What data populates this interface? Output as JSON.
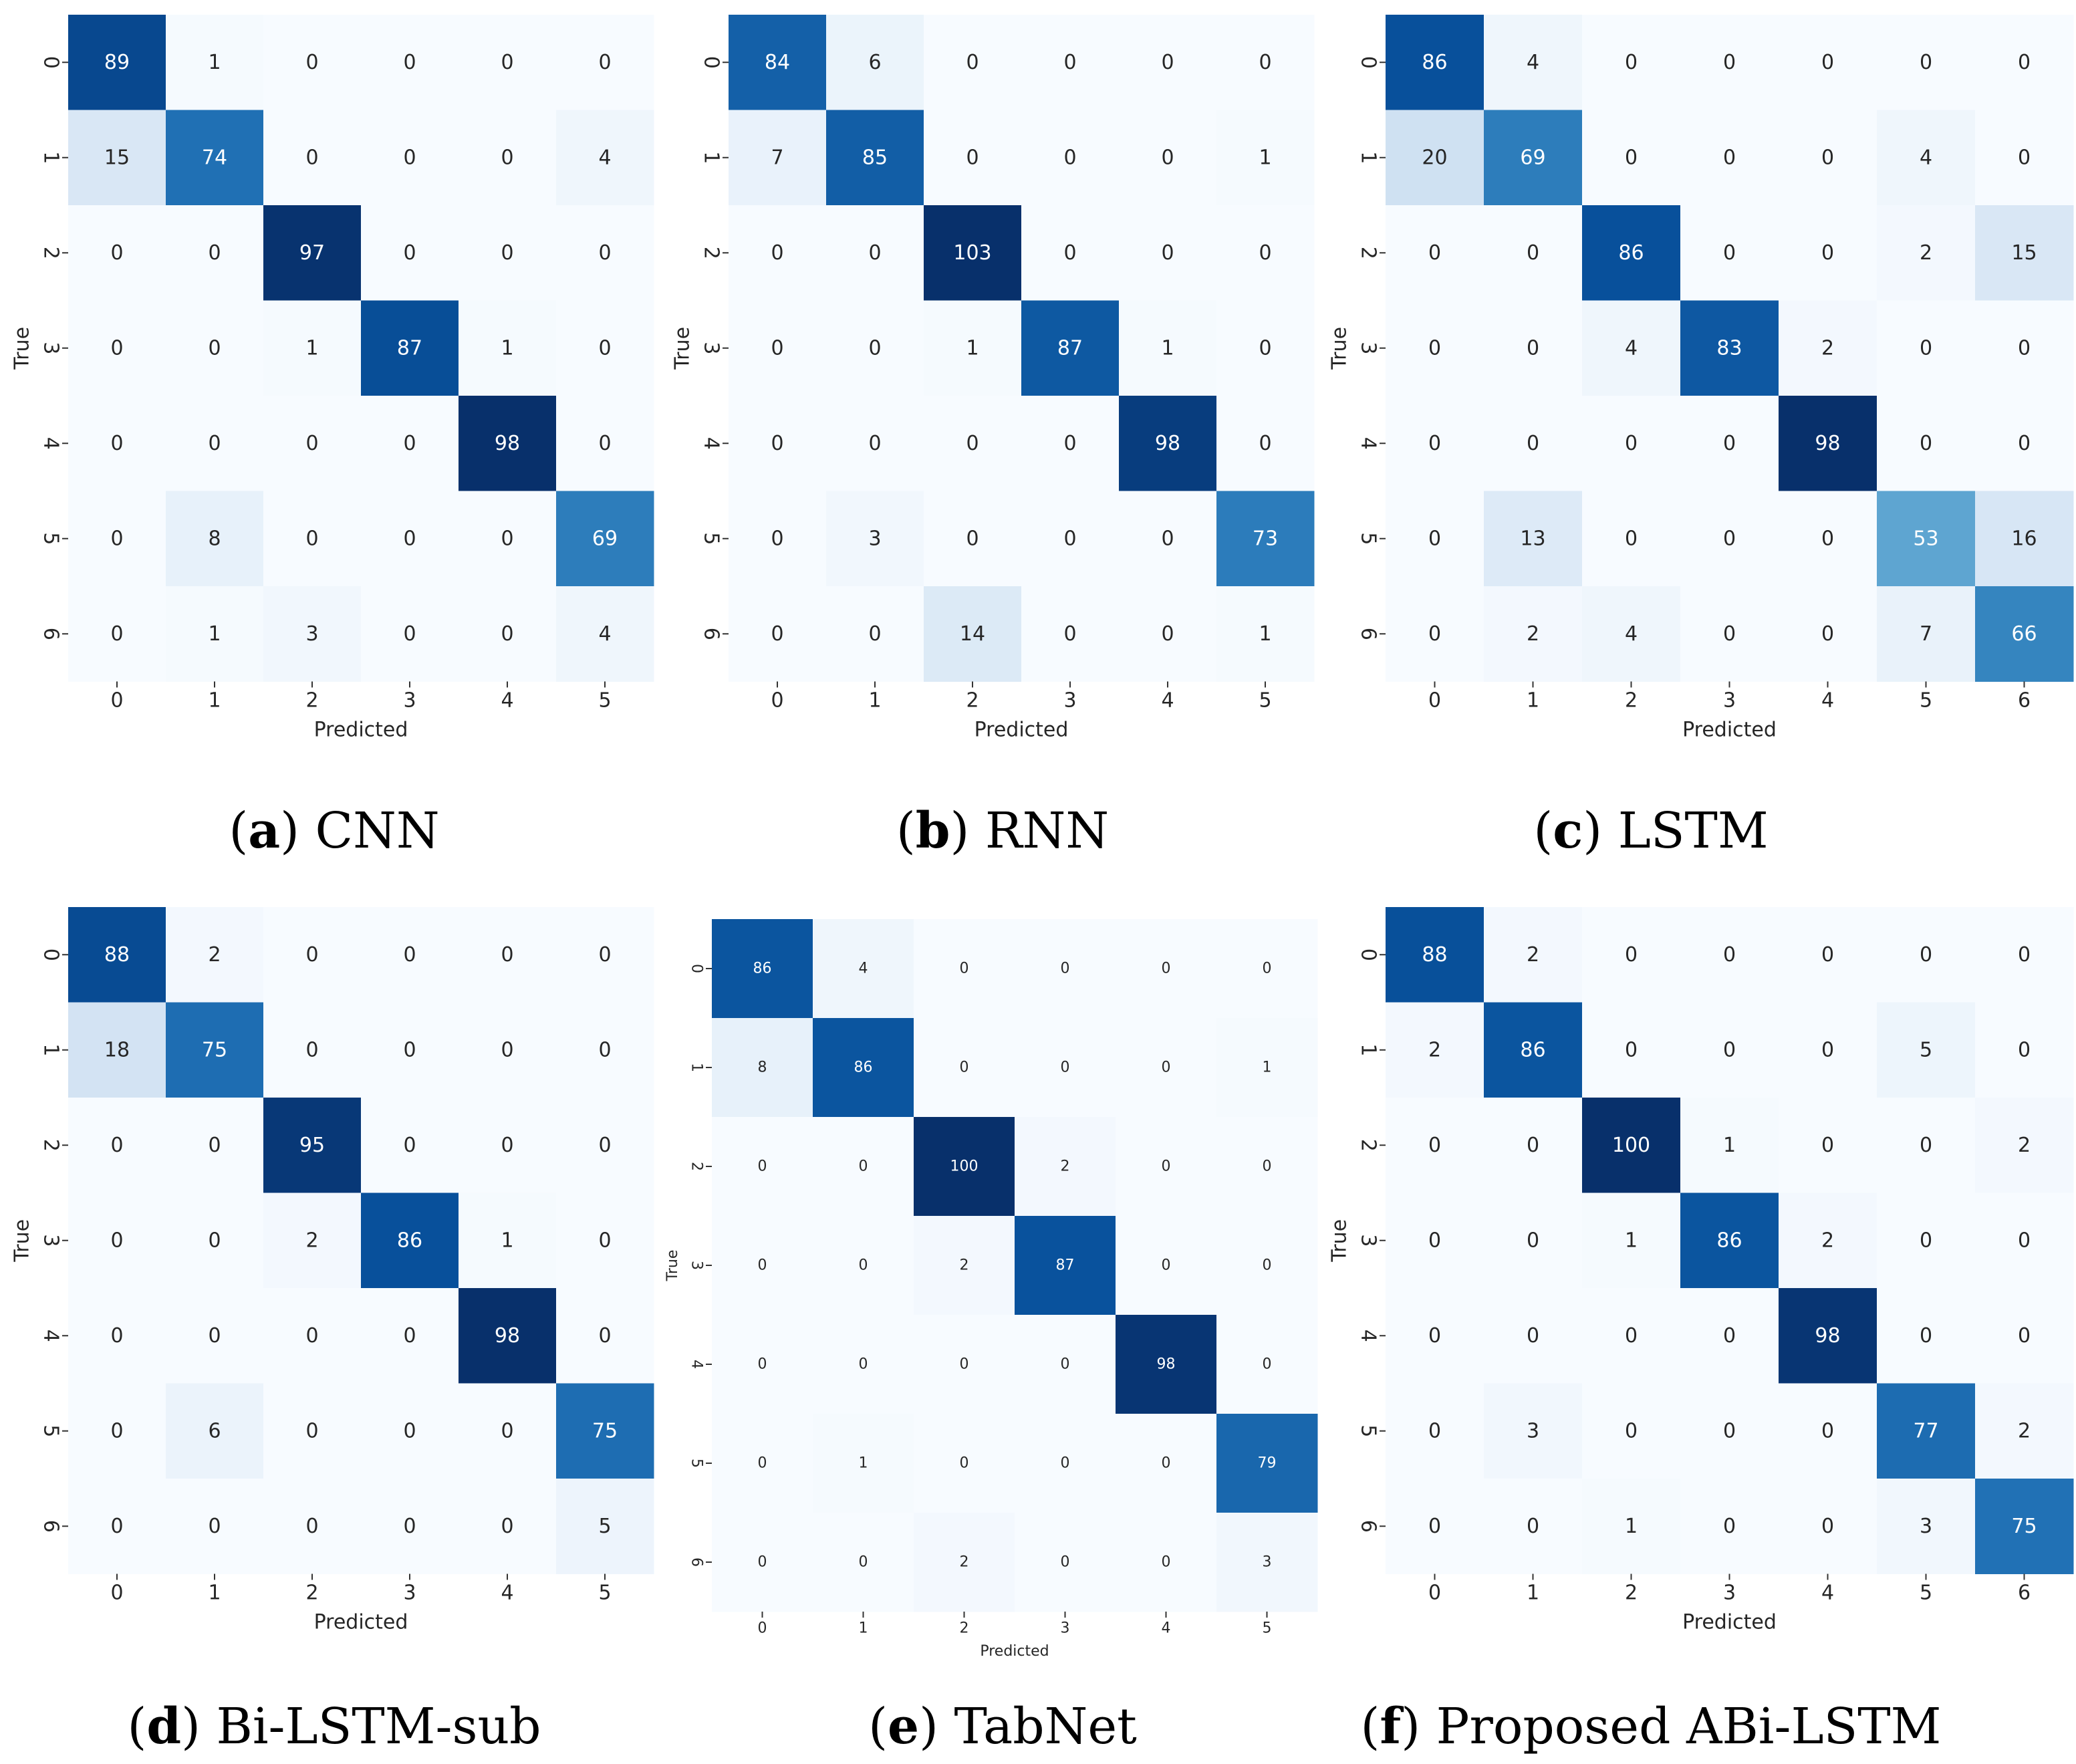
{
  "colors": {
    "low": "#f7fbff",
    "high": "#08306b",
    "text_dark": "#262626",
    "text_light": "#ffffff"
  },
  "chart_data": [
    {
      "type": "heatmap",
      "title": "",
      "xlabel": "Predicted",
      "ylabel": "True",
      "x_ticks": [
        "0",
        "1",
        "2",
        "3",
        "4",
        "5"
      ],
      "y_ticks": [
        "0",
        "1",
        "2",
        "3",
        "4",
        "5",
        "6"
      ],
      "values": [
        [
          89,
          1,
          0,
          0,
          0,
          0
        ],
        [
          15,
          74,
          0,
          0,
          0,
          4
        ],
        [
          0,
          0,
          97,
          0,
          0,
          0
        ],
        [
          0,
          0,
          1,
          87,
          1,
          0
        ],
        [
          0,
          0,
          0,
          0,
          98,
          0
        ],
        [
          0,
          8,
          0,
          0,
          0,
          69
        ],
        [
          0,
          1,
          3,
          0,
          0,
          4
        ]
      ],
      "caption_letter": "a",
      "caption_text": "CNN",
      "colormap": "Blues"
    },
    {
      "type": "heatmap",
      "title": "",
      "xlabel": "Predicted",
      "ylabel": "True",
      "x_ticks": [
        "0",
        "1",
        "2",
        "3",
        "4",
        "5"
      ],
      "y_ticks": [
        "0",
        "1",
        "2",
        "3",
        "4",
        "5",
        "6"
      ],
      "values": [
        [
          84,
          6,
          0,
          0,
          0,
          0
        ],
        [
          7,
          85,
          0,
          0,
          0,
          1
        ],
        [
          0,
          0,
          103,
          0,
          0,
          0
        ],
        [
          0,
          0,
          1,
          87,
          1,
          0
        ],
        [
          0,
          0,
          0,
          0,
          98,
          0
        ],
        [
          0,
          3,
          0,
          0,
          0,
          73
        ],
        [
          0,
          0,
          14,
          0,
          0,
          1
        ]
      ],
      "caption_letter": "b",
      "caption_text": "RNN",
      "colormap": "Blues"
    },
    {
      "type": "heatmap",
      "title": "",
      "xlabel": "Predicted",
      "ylabel": "True",
      "x_ticks": [
        "0",
        "1",
        "2",
        "3",
        "4",
        "5",
        "6"
      ],
      "y_ticks": [
        "0",
        "1",
        "2",
        "3",
        "4",
        "5",
        "6"
      ],
      "values": [
        [
          86,
          4,
          0,
          0,
          0,
          0,
          0
        ],
        [
          20,
          69,
          0,
          0,
          0,
          4,
          0
        ],
        [
          0,
          0,
          86,
          0,
          0,
          2,
          15
        ],
        [
          0,
          0,
          4,
          83,
          2,
          0,
          0
        ],
        [
          0,
          0,
          0,
          0,
          98,
          0,
          0
        ],
        [
          0,
          13,
          0,
          0,
          0,
          53,
          16
        ],
        [
          0,
          2,
          4,
          0,
          0,
          7,
          66
        ]
      ],
      "caption_letter": "c",
      "caption_text": "LSTM",
      "colormap": "Blues"
    },
    {
      "type": "heatmap",
      "title": "",
      "xlabel": "Predicted",
      "ylabel": "True",
      "x_ticks": [
        "0",
        "1",
        "2",
        "3",
        "4",
        "5"
      ],
      "y_ticks": [
        "0",
        "1",
        "2",
        "3",
        "4",
        "5",
        "6"
      ],
      "values": [
        [
          88,
          2,
          0,
          0,
          0,
          0
        ],
        [
          18,
          75,
          0,
          0,
          0,
          0
        ],
        [
          0,
          0,
          95,
          0,
          0,
          0
        ],
        [
          0,
          0,
          2,
          86,
          1,
          0
        ],
        [
          0,
          0,
          0,
          0,
          98,
          0
        ],
        [
          0,
          6,
          0,
          0,
          0,
          75
        ],
        [
          0,
          0,
          0,
          0,
          0,
          5
        ]
      ],
      "caption_letter": "d",
      "caption_text": "Bi-LSTM-sub",
      "colormap": "Blues"
    },
    {
      "type": "heatmap",
      "title": "",
      "xlabel": "Predicted",
      "ylabel": "True",
      "x_ticks": [
        "0",
        "1",
        "2",
        "3",
        "4",
        "5"
      ],
      "y_ticks": [
        "0",
        "1",
        "2",
        "3",
        "4",
        "5",
        "6"
      ],
      "values": [
        [
          86,
          4,
          0,
          0,
          0,
          0
        ],
        [
          8,
          86,
          0,
          0,
          0,
          1
        ],
        [
          0,
          0,
          100,
          2,
          0,
          0
        ],
        [
          0,
          0,
          2,
          87,
          0,
          0
        ],
        [
          0,
          0,
          0,
          0,
          98,
          0
        ],
        [
          0,
          1,
          0,
          0,
          0,
          79
        ],
        [
          0,
          0,
          2,
          0,
          0,
          3
        ]
      ],
      "caption_letter": "e",
      "caption_text": "TabNet",
      "colormap": "Blues"
    },
    {
      "type": "heatmap",
      "title": "",
      "xlabel": "Predicted",
      "ylabel": "True",
      "x_ticks": [
        "0",
        "1",
        "2",
        "3",
        "4",
        "5",
        "6"
      ],
      "y_ticks": [
        "0",
        "1",
        "2",
        "3",
        "4",
        "5",
        "6"
      ],
      "values": [
        [
          88,
          2,
          0,
          0,
          0,
          0,
          0
        ],
        [
          2,
          86,
          0,
          0,
          0,
          5,
          0
        ],
        [
          0,
          0,
          100,
          1,
          0,
          0,
          2
        ],
        [
          0,
          0,
          1,
          86,
          2,
          0,
          0
        ],
        [
          0,
          0,
          0,
          0,
          98,
          0,
          0
        ],
        [
          0,
          3,
          0,
          0,
          0,
          77,
          2
        ],
        [
          0,
          0,
          1,
          0,
          0,
          3,
          75
        ]
      ],
      "caption_letter": "f",
      "caption_text": "Proposed ABi-LSTM",
      "colormap": "Blues"
    }
  ]
}
